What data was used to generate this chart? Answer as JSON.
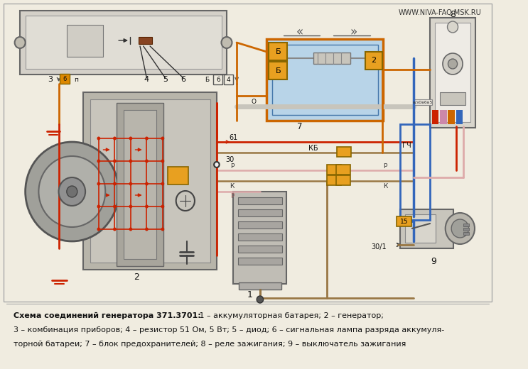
{
  "background_color": "#f0ece0",
  "border_color": "#999999",
  "website_text": "WWW.NIVA-FAQ.MSK.RU",
  "fig_width": 7.43,
  "fig_height": 5.2,
  "dpi": 100,
  "colors": {
    "red_wire": "#cc2200",
    "orange_wire": "#cc6600",
    "blue_wire": "#3366bb",
    "pink_wire": "#ddaaaa",
    "brown_wire": "#997744",
    "black_wire": "#222222",
    "gray_wire": "#888888",
    "yellow_box": "#e8a020",
    "light_blue_fill": "#b8d4e8",
    "gen_body": "#c0bdb0",
    "gen_dark": "#909090",
    "gen_light": "#d8d5cc",
    "top_box_bg": "#d8d5cc",
    "relay_bg": "#e0ddd8",
    "relay_inner": "#f0ede8",
    "switch_bg": "#c8c5bc",
    "battery_bg": "#b8b5ac",
    "fuse_orange": "#dd8800"
  },
  "caption_bold": "Схема соединений генератора 371.3701:",
  "caption_line1": " 1 – аккумуляторная батарея; 2 – генератор;",
  "caption_line2": "3 – комбинация приборов; 4 – резистор 51 Ом, 5 Вт; 5 – диод; 6 – сигнальная лампа разряда аккумуля-",
  "caption_line3": "торной батареи; 7 – блок предохранителей; 8 – реле зажигания; 9 – выключатель зажигания"
}
